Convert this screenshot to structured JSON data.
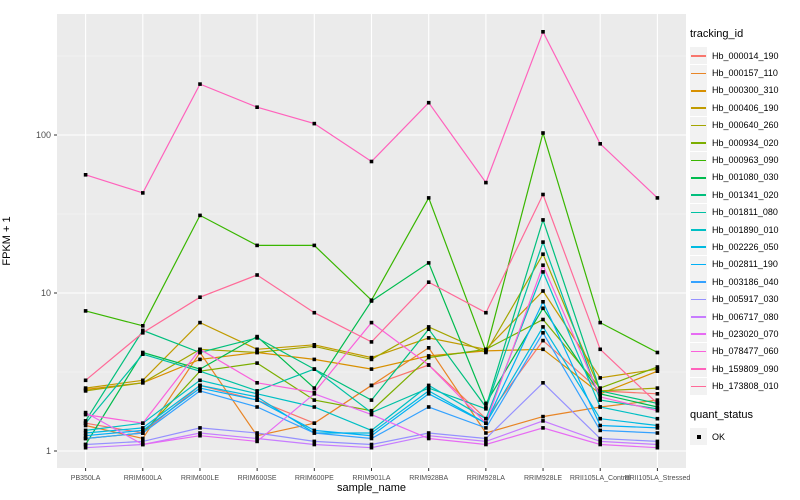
{
  "legend": {
    "tracking_title": "tracking_id",
    "quant_title": "quant_status",
    "quant_label": "OK"
  },
  "chart_data": {
    "type": "line",
    "title": "",
    "xlabel": "sample_name",
    "ylabel": "FPKM + 1",
    "y_scale": "log10",
    "ylim": [
      0.8,
      580
    ],
    "y_ticks": [
      1,
      10,
      100
    ],
    "y_minor_ticks": [
      3.1623,
      31.623,
      316.23
    ],
    "grid": true,
    "legend_position": "right",
    "point_marker": "black-square",
    "quant_status": "OK",
    "panel_bg": "#EBEBEB",
    "grid_color": "#FFFFFF",
    "tick_text_color": "#4D4D4D",
    "categories": [
      "PB350LA",
      "RRIM600LA",
      "RRIM600LE",
      "RRIM600SE",
      "RRIM600PE",
      "RRIM901LA",
      "RRIM928BA",
      "RRIM928LA",
      "RRIM928LE",
      "RRII105LA_Control",
      "RRII105LA_Stressed"
    ],
    "series": [
      {
        "name": "Hb_000014_190",
        "color": "#F8766D",
        "values": [
          1.5,
          1.3,
          2.6,
          2.1,
          1.5,
          2.6,
          3.5,
          1.6,
          5.0,
          2.4,
          2.3
        ]
      },
      {
        "name": "Hb_000157_110",
        "color": "#E88526",
        "values": [
          1.45,
          1.2,
          4.2,
          1.25,
          1.5,
          2.6,
          4.5,
          1.3,
          1.65,
          1.9,
          2.1
        ]
      },
      {
        "name": "Hb_000300_310",
        "color": "#D89000",
        "values": [
          2.45,
          2.7,
          3.8,
          4.2,
          3.8,
          3.3,
          4.0,
          4.3,
          4.4,
          2.3,
          3.2
        ]
      },
      {
        "name": "Hb_000406_190",
        "color": "#C09B00",
        "values": [
          2.5,
          2.8,
          6.5,
          4.4,
          4.7,
          3.9,
          5.2,
          4.4,
          10.3,
          2.9,
          3.3
        ]
      },
      {
        "name": "Hb_000640_260",
        "color": "#A3A500",
        "values": [
          2.4,
          2.7,
          4.4,
          4.2,
          4.6,
          3.8,
          6.1,
          4.2,
          17.6,
          2.4,
          2.5
        ]
      },
      {
        "name": "Hb_000934_020",
        "color": "#7CAE00",
        "values": [
          1.2,
          1.3,
          3.2,
          3.6,
          2.1,
          1.8,
          3.9,
          4.4,
          6.8,
          2.5,
          3.4
        ]
      },
      {
        "name": "Hb_000963_090",
        "color": "#39B600",
        "values": [
          7.7,
          6.2,
          31,
          20,
          20,
          9.0,
          40,
          4.3,
          103,
          6.5,
          4.2
        ]
      },
      {
        "name": "Hb_001080_030",
        "color": "#00BB4E",
        "values": [
          1.1,
          4.2,
          3.3,
          5.3,
          2.5,
          8.9,
          15.5,
          2.0,
          8.0,
          2.3,
          1.9
        ]
      },
      {
        "name": "Hb_001341_020",
        "color": "#00BF7D",
        "values": [
          1.55,
          5.8,
          4.2,
          5.2,
          3.3,
          2.1,
          5.9,
          1.9,
          29,
          2.4,
          2.0
        ]
      },
      {
        "name": "Hb_001811_080",
        "color": "#00C1A3",
        "values": [
          1.5,
          4.1,
          3.2,
          2.4,
          3.3,
          1.75,
          2.5,
          1.85,
          21,
          2.1,
          1.85
        ]
      },
      {
        "name": "Hb_001890_010",
        "color": "#00BFC4",
        "values": [
          1.35,
          1.5,
          2.8,
          2.3,
          1.9,
          1.35,
          2.6,
          1.6,
          13.6,
          1.9,
          1.6
        ]
      },
      {
        "name": "Hb_002226_050",
        "color": "#00BAE0",
        "values": [
          1.3,
          1.4,
          2.6,
          2.2,
          1.3,
          1.3,
          2.4,
          1.5,
          6.1,
          1.6,
          1.45
        ]
      },
      {
        "name": "Hb_002811_190",
        "color": "#00B0F6",
        "values": [
          1.25,
          1.35,
          2.5,
          2.1,
          1.35,
          1.25,
          2.3,
          1.5,
          8.8,
          1.45,
          1.4
        ]
      },
      {
        "name": "Hb_003186_040",
        "color": "#35A2FF",
        "values": [
          1.2,
          1.3,
          2.4,
          1.9,
          1.3,
          1.2,
          1.9,
          1.4,
          5.6,
          1.35,
          1.3
        ]
      },
      {
        "name": "Hb_005917_030",
        "color": "#9590FF",
        "values": [
          1.1,
          1.15,
          1.4,
          1.3,
          1.15,
          1.1,
          1.3,
          1.2,
          2.7,
          1.2,
          1.15
        ]
      },
      {
        "name": "Hb_006717_080",
        "color": "#C77CFF",
        "values": [
          1.05,
          1.1,
          1.3,
          1.2,
          1.1,
          1.05,
          1.25,
          1.15,
          1.55,
          1.15,
          1.1
        ]
      },
      {
        "name": "Hb_023020_070",
        "color": "#E76BF3",
        "values": [
          1.75,
          1.1,
          1.25,
          1.15,
          2.3,
          1.7,
          1.2,
          1.1,
          1.4,
          1.1,
          1.05
        ]
      },
      {
        "name": "Hb_078477_060",
        "color": "#FA62DB",
        "values": [
          1.7,
          1.5,
          4.4,
          2.7,
          2.35,
          6.5,
          3.5,
          1.5,
          15,
          2.2,
          1.8
        ]
      },
      {
        "name": "Hb_159809_090",
        "color": "#FF62BC",
        "values": [
          56,
          43,
          210,
          150,
          118,
          68,
          160,
          50,
          450,
          88,
          40
        ]
      },
      {
        "name": "Hb_173808_010",
        "color": "#FF6A98",
        "values": [
          2.8,
          5.6,
          9.4,
          13,
          7.5,
          4.9,
          11.7,
          7.5,
          42,
          4.4,
          2.0
        ]
      }
    ]
  }
}
